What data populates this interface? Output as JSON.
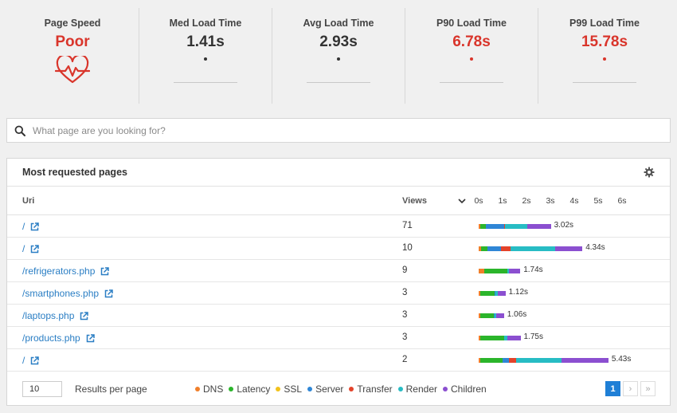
{
  "stats": [
    {
      "label": "Page Speed",
      "value": "Poor",
      "status": "bad",
      "icon": "heart-pulse-icon"
    },
    {
      "label": "Med Load Time",
      "value": "1.41s",
      "status": "normal"
    },
    {
      "label": "Avg Load Time",
      "value": "2.93s",
      "status": "normal"
    },
    {
      "label": "P90 Load Time",
      "value": "6.78s",
      "status": "bad"
    },
    {
      "label": "P99 Load Time",
      "value": "15.78s",
      "status": "bad"
    }
  ],
  "search": {
    "placeholder": "What page are you looking for?"
  },
  "panel": {
    "title": "Most requested pages",
    "columns": {
      "uri": "Uri",
      "views": "Views"
    },
    "ticks": [
      "0s",
      "1s",
      "2s",
      "3s",
      "4s",
      "5s",
      "6s"
    ],
    "rows": [
      {
        "uri": "/",
        "views": "71",
        "total": "3.02s",
        "segments": [
          0.08,
          0.23,
          0.0,
          0.77,
          0.02,
          0.95,
          0.97
        ]
      },
      {
        "uri": "/",
        "views": "10",
        "total": "4.34s",
        "segments": [
          0.1,
          0.25,
          0.0,
          0.58,
          0.4,
          1.86,
          1.15
        ]
      },
      {
        "uri": "/refrigerators.php",
        "views": "9",
        "total": "1.74s",
        "segments": [
          0.24,
          0.97,
          0.0,
          0.0,
          0.0,
          0.07,
          0.46
        ]
      },
      {
        "uri": "/smartphones.php",
        "views": "3",
        "total": "1.12s",
        "segments": [
          0.05,
          0.6,
          0.0,
          0.04,
          0.0,
          0.1,
          0.33
        ]
      },
      {
        "uri": "/laptops.php",
        "views": "3",
        "total": "1.06s",
        "segments": [
          0.05,
          0.58,
          0.0,
          0.04,
          0.0,
          0.07,
          0.32
        ]
      },
      {
        "uri": "/products.php",
        "views": "3",
        "total": "1.75s",
        "segments": [
          0.05,
          1.0,
          0.0,
          0.0,
          0.0,
          0.15,
          0.55
        ]
      },
      {
        "uri": "/",
        "views": "2",
        "total": "5.43s",
        "segments": [
          0.05,
          0.95,
          0.0,
          0.27,
          0.3,
          1.9,
          1.96
        ]
      }
    ]
  },
  "footer": {
    "per_page_value": "10",
    "per_page_label": "Results per page",
    "legend": [
      {
        "label": "DNS",
        "color": "#f07f2a"
      },
      {
        "label": "Latency",
        "color": "#2bb52b"
      },
      {
        "label": "SSL",
        "color": "#f2c21b"
      },
      {
        "label": "Server",
        "color": "#2f86d6"
      },
      {
        "label": "Transfer",
        "color": "#e3432a"
      },
      {
        "label": "Render",
        "color": "#27bcc4"
      },
      {
        "label": "Children",
        "color": "#8b4fd0"
      }
    ],
    "pages": {
      "current": "1",
      "next": "›",
      "last": "»"
    }
  }
}
